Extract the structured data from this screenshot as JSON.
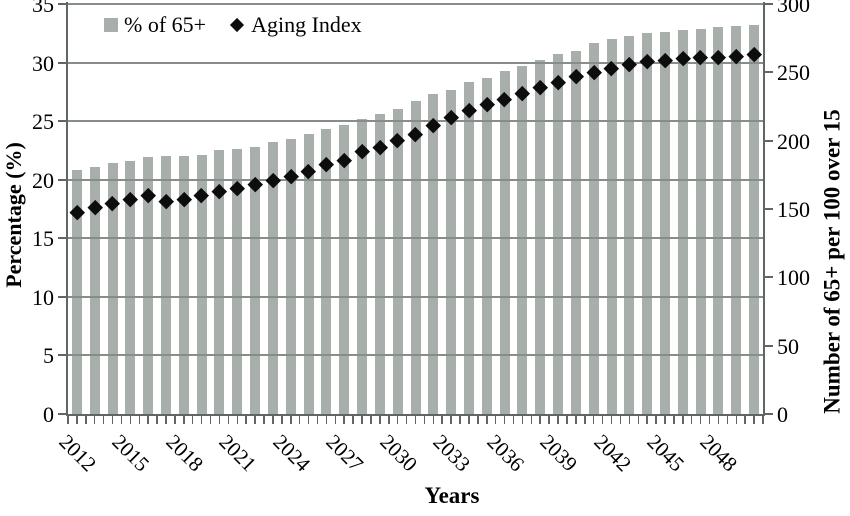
{
  "chart_data": {
    "type": "bar",
    "title": "",
    "xlabel": "Years",
    "ylabel_left": "Percentage (%)",
    "ylabel_right": "Number of 65+ per 100 over 15",
    "legend_position": "top",
    "grid": true,
    "x": [
      2012,
      2013,
      2014,
      2015,
      2016,
      2017,
      2018,
      2019,
      2020,
      2021,
      2022,
      2023,
      2024,
      2025,
      2026,
      2027,
      2028,
      2029,
      2030,
      2031,
      2032,
      2033,
      2034,
      2035,
      2036,
      2037,
      2038,
      2039,
      2040,
      2041,
      2042,
      2043,
      2044,
      2045,
      2046,
      2047,
      2048,
      2049,
      2050
    ],
    "x_tick_labels": [
      "2012",
      "2015",
      "2018",
      "2021",
      "2024",
      "2027",
      "2030",
      "2033",
      "2036",
      "2039",
      "2042",
      "2045",
      "2048"
    ],
    "series": [
      {
        "name": "% of 65+",
        "type": "bar",
        "axis": "left",
        "marker": "square",
        "values": [
          20.8,
          21.1,
          21.4,
          21.6,
          21.9,
          22.0,
          22.0,
          22.1,
          22.5,
          22.6,
          22.8,
          23.2,
          23.5,
          23.9,
          24.3,
          24.7,
          25.2,
          25.6,
          26.0,
          26.7,
          27.3,
          27.7,
          28.3,
          28.7,
          29.3,
          29.7,
          30.2,
          30.7,
          31.0,
          31.7,
          32.0,
          32.3,
          32.5,
          32.6,
          32.8,
          32.9,
          33.0,
          33.1,
          33.2
        ]
      },
      {
        "name": "Aging Index",
        "type": "scatter",
        "axis": "right",
        "marker": "diamond",
        "values": [
          148,
          151,
          154,
          157,
          160,
          156,
          157,
          160,
          163,
          165,
          168,
          171,
          174,
          178,
          183,
          186,
          192,
          195,
          200,
          205,
          211,
          217,
          222,
          227,
          230,
          235,
          239,
          243,
          247,
          250,
          253,
          256,
          258,
          259,
          260,
          261,
          261,
          262,
          263
        ]
      }
    ],
    "left_axis": {
      "min": 0,
      "max": 35,
      "tick_step": 5,
      "ticks": [
        0,
        5,
        10,
        15,
        20,
        25,
        30,
        35
      ]
    },
    "right_axis": {
      "min": 0,
      "max": 300,
      "tick_step": 50,
      "ticks": [
        0,
        50,
        100,
        150,
        200,
        250,
        300
      ]
    },
    "colors": {
      "bar": "#a8aeaa",
      "marker": "#0d0d0d",
      "gridline": "#878d89",
      "axis": "#606663",
      "text": "#000000"
    }
  }
}
